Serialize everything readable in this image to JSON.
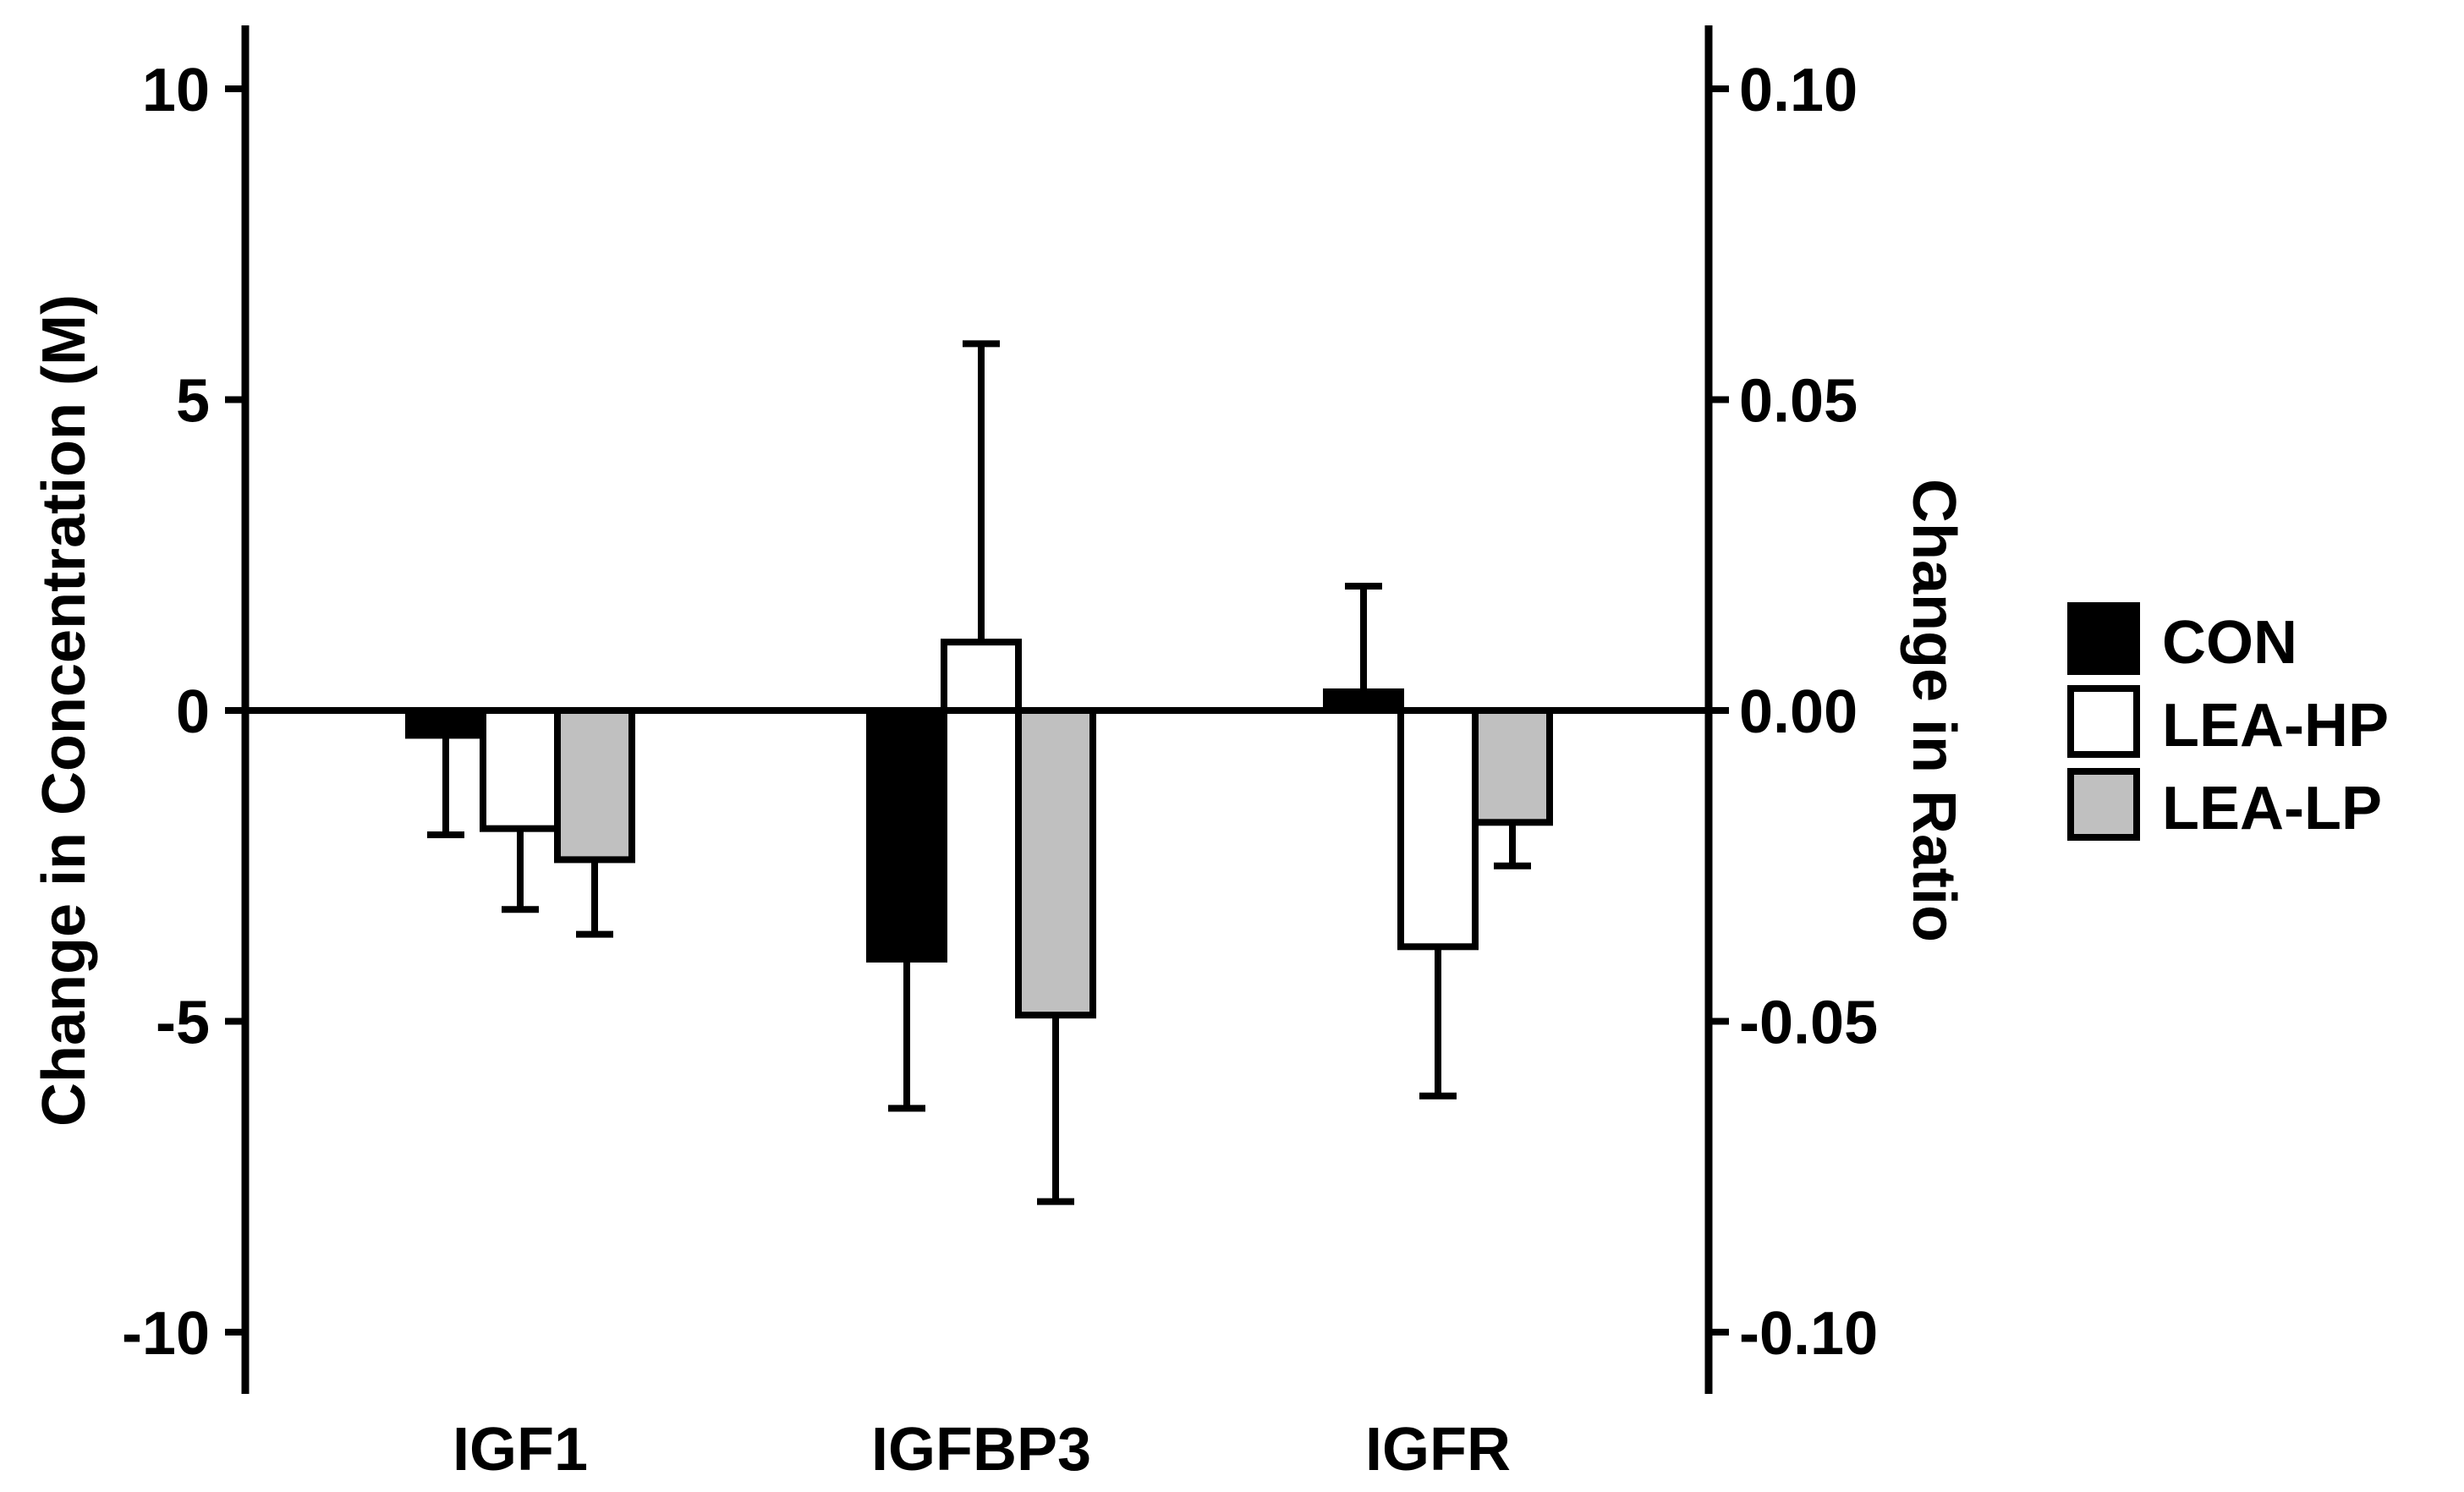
{
  "chart_data": {
    "type": "bar",
    "title": "",
    "xlabel": "",
    "ylabel": "Change in Concentration (M)",
    "y2label": "Change in Ratio",
    "ylim": [
      -11,
      11
    ],
    "y2lim": [
      -0.11,
      0.11
    ],
    "yticks": [
      "10",
      "5",
      "0",
      "-5",
      "-10"
    ],
    "ytick_values": [
      10,
      5,
      0,
      -5,
      -10
    ],
    "y2ticks": [
      "0.10",
      "0.05",
      "0.00",
      "-0.05",
      "-0.10"
    ],
    "y2tick_values": [
      0.1,
      0.05,
      0.0,
      -0.05,
      -0.1
    ],
    "categories": [
      "IGF1",
      "IGFBP3",
      "IGFR"
    ],
    "axis_by_category": [
      "left",
      "left",
      "right"
    ],
    "grid": false,
    "legend_position": "right",
    "series": [
      {
        "name": "CON",
        "color": "#000000",
        "values": [
          -0.4,
          -4.0,
          0.003
        ],
        "errors": [
          1.6,
          2.4,
          0.017
        ]
      },
      {
        "name": "LEA-HP",
        "color": "#ffffff",
        "values": [
          -1.9,
          1.1,
          -0.038
        ],
        "errors": [
          1.3,
          4.8,
          0.024
        ]
      },
      {
        "name": "LEA-LP",
        "color": "#c0c0c0",
        "values": [
          -2.4,
          -4.9,
          -0.018
        ],
        "errors": [
          1.2,
          3.0,
          0.007
        ]
      }
    ]
  }
}
